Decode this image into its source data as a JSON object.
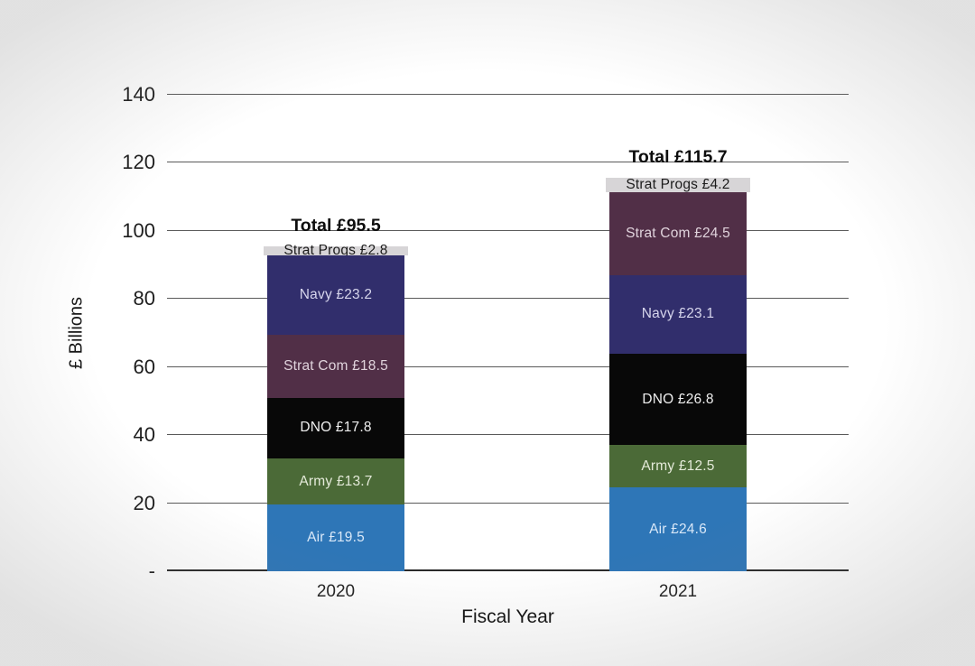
{
  "chart_data": {
    "type": "bar",
    "stacked": true,
    "xlabel": "Fiscal Year",
    "ylabel": "£ Billions",
    "ylim": [
      0,
      140
    ],
    "grid": true,
    "legend": "none",
    "categories": [
      "2020",
      "2021"
    ],
    "yticks": [
      {
        "value": 0,
        "label": "-"
      },
      {
        "value": 20,
        "label": "20"
      },
      {
        "value": 40,
        "label": "40"
      },
      {
        "value": 60,
        "label": "60"
      },
      {
        "value": 80,
        "label": "80"
      },
      {
        "value": 100,
        "label": "100"
      },
      {
        "value": 120,
        "label": "120"
      },
      {
        "value": 140,
        "label": "140"
      }
    ],
    "bars": [
      {
        "category": "2020",
        "total": 95.5,
        "total_label": "Total £95.5",
        "segments": [
          {
            "name": "Air",
            "value": 19.5,
            "label": "Air £19.5"
          },
          {
            "name": "Army",
            "value": 13.7,
            "label": "Army £13.7"
          },
          {
            "name": "DNO",
            "value": 17.8,
            "label": "DNO £17.8"
          },
          {
            "name": "Strat Com",
            "value": 18.5,
            "label": "Strat Com £18.5"
          },
          {
            "name": "Navy",
            "value": 23.2,
            "label": "Navy £23.2"
          },
          {
            "name": "Strat Progs",
            "value": 2.8,
            "label": "Strat Progs £2.8"
          }
        ]
      },
      {
        "category": "2021",
        "total": 115.7,
        "total_label": "Total £115.7",
        "segments": [
          {
            "name": "Air",
            "value": 24.6,
            "label": "Air £24.6"
          },
          {
            "name": "Army",
            "value": 12.5,
            "label": "Army £12.5"
          },
          {
            "name": "DNO",
            "value": 26.8,
            "label": "DNO £26.8"
          },
          {
            "name": "Navy",
            "value": 23.1,
            "label": "Navy £23.1"
          },
          {
            "name": "Strat Com",
            "value": 24.5,
            "label": "Strat Com £24.5"
          },
          {
            "name": "Strat Progs",
            "value": 4.2,
            "label": "Strat Progs £4.2"
          }
        ]
      }
    ],
    "palette": {
      "Air": {
        "fill": "#2e76b7",
        "text": "#d9e8f8"
      },
      "Army": {
        "fill": "#4b6a37",
        "text": "#e4ead9"
      },
      "DNO": {
        "fill": "#080808",
        "text": "#efefef"
      },
      "Navy": {
        "fill": "#312e6c",
        "text": "#d6d5ec"
      },
      "Strat Com": {
        "fill": "#512f47",
        "text": "#e0d3dc"
      },
      "Strat Progs": {
        "fill": "#d7d5d7",
        "text": "#1b1b1b"
      }
    }
  }
}
